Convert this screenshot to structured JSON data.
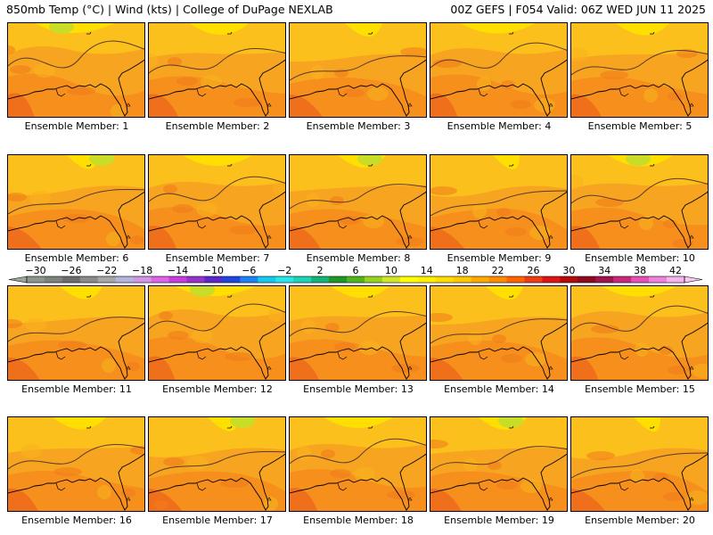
{
  "header": {
    "left": "850mb Temp (°C) | Wind (kts) | College of DuPage NEXLAB",
    "right": "00Z GEFS | F054 Valid: 06Z WED JUN 11 2025"
  },
  "panels": [
    {
      "label": "Ensemble Member: 1"
    },
    {
      "label": "Ensemble Member: 2"
    },
    {
      "label": "Ensemble Member: 3"
    },
    {
      "label": "Ensemble Member: 4"
    },
    {
      "label": "Ensemble Member: 5"
    },
    {
      "label": "Ensemble Member: 6"
    },
    {
      "label": "Ensemble Member: 7"
    },
    {
      "label": "Ensemble Member: 8"
    },
    {
      "label": "Ensemble Member: 9"
    },
    {
      "label": "Ensemble Member: 10"
    },
    {
      "label": "Ensemble Member: 11"
    },
    {
      "label": "Ensemble Member: 12"
    },
    {
      "label": "Ensemble Member: 13"
    },
    {
      "label": "Ensemble Member: 14"
    },
    {
      "label": "Ensemble Member: 15"
    },
    {
      "label": "Ensemble Member: 16"
    },
    {
      "label": "Ensemble Member: 17"
    },
    {
      "label": "Ensemble Member: 18"
    },
    {
      "label": "Ensemble Member: 19"
    },
    {
      "label": "Ensemble Member: 20"
    }
  ],
  "colorbar": {
    "labels": [
      "−30",
      "−26",
      "−22",
      "−18",
      "−14",
      "−10",
      "−6",
      "−2",
      "2",
      "6",
      "10",
      "14",
      "18",
      "22",
      "26",
      "30",
      "34",
      "38",
      "42"
    ],
    "colors": [
      "#8c968c",
      "#7c827c",
      "#6c6c6c",
      "#8a8a8a",
      "#a6a6a6",
      "#b4b4dc",
      "#d296e6",
      "#dc64e6",
      "#c83cdc",
      "#9632c8",
      "#5a28c8",
      "#1e46dc",
      "#1e82f0",
      "#14c8f0",
      "#28e6e6",
      "#1ed2b4",
      "#14b478",
      "#1e9628",
      "#50b41e",
      "#96d21e",
      "#d2e628",
      "#ffff00",
      "#fff000",
      "#ffdc00",
      "#ffc800",
      "#ffaa00",
      "#ff8c00",
      "#ff6400",
      "#f03c14",
      "#dc1414",
      "#b40a0a",
      "#8c0a1e",
      "#a01450",
      "#c8287c",
      "#e650b4",
      "#f082dc",
      "#f5b4eb"
    ]
  }
}
